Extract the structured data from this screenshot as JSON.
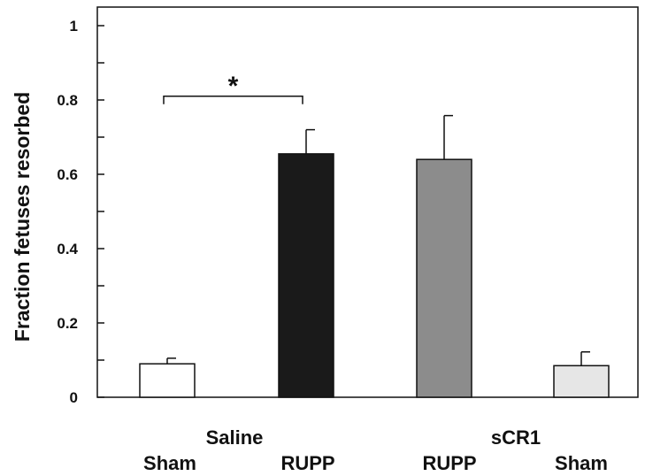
{
  "chart_data": {
    "type": "bar",
    "ylabel": "Fraction fetuses resorbed",
    "ylim": [
      0,
      1.05
    ],
    "yticks": [
      0,
      0.2,
      0.4,
      0.6,
      0.8,
      1
    ],
    "ytick_labels": [
      "0",
      "0.2",
      "0.4",
      "0.6",
      "0.8",
      "1"
    ],
    "groups": [
      {
        "label": "Saline",
        "categories": [
          "Sham",
          "RUPP"
        ]
      },
      {
        "label": "sCR1",
        "categories": [
          "RUPP",
          "Sham"
        ]
      }
    ],
    "bars": [
      {
        "group": "Saline",
        "category": "Sham",
        "value": 0.09,
        "error": 0.015,
        "color": "#ffffff"
      },
      {
        "group": "Saline",
        "category": "RUPP",
        "value": 0.655,
        "error": 0.065,
        "color": "#1a1a1a"
      },
      {
        "group": "sCR1",
        "category": "RUPP",
        "value": 0.64,
        "error": 0.118,
        "color": "#8c8c8c"
      },
      {
        "group": "sCR1",
        "category": "Sham",
        "value": 0.085,
        "error": 0.037,
        "color": "#e6e6e6"
      }
    ],
    "significance": [
      {
        "from_bar": 0,
        "to_bar": 1,
        "label": "*",
        "y": 0.81
      }
    ],
    "grid": false
  }
}
